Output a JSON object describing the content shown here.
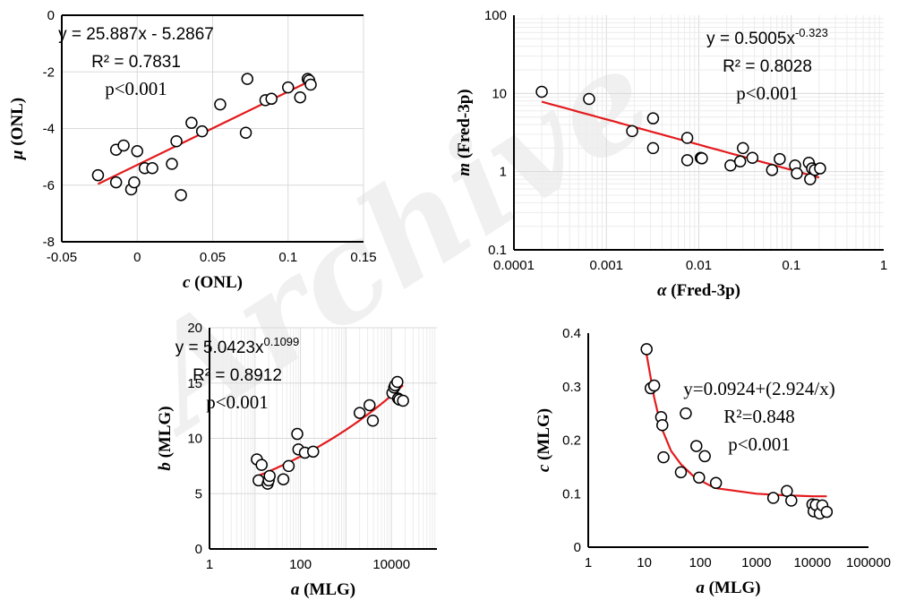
{
  "watermark": "Archive",
  "chart_data": [
    {
      "type": "scatter",
      "xscale": "linear",
      "yscale": "linear",
      "xlabel_var": "c",
      "xlabel_unit": " (ONL)",
      "ylabel_var": "μ",
      "ylabel_unit": " (ONL)",
      "xlim": [
        -0.05,
        0.15
      ],
      "ylim": [
        -8,
        0
      ],
      "xticks": [
        -0.05,
        0,
        0.05,
        0.1,
        0.15
      ],
      "xtick_labels": [
        "-0.05",
        "0",
        "0.05",
        "0.1",
        "0.15"
      ],
      "yticks": [
        -8,
        -6,
        -4,
        -2,
        0
      ],
      "ytick_labels": [
        "-8",
        "-6",
        "-4",
        "-2",
        "0"
      ],
      "grid": true,
      "equation_font": "sans",
      "equation_lines": [
        "y = 25.887x - 5.2867",
        "R² = 0.7831",
        "p<0.001"
      ],
      "fit": {
        "kind": "linear",
        "a": 25.887,
        "b": -5.2867,
        "xrange": [
          -0.026,
          0.116
        ]
      },
      "points": [
        [
          -0.026,
          -5.65
        ],
        [
          -0.014,
          -5.9
        ],
        [
          -0.014,
          -4.75
        ],
        [
          -0.009,
          -4.6
        ],
        [
          -0.004,
          -6.15
        ],
        [
          -0.002,
          -5.9
        ],
        [
          0,
          -4.8
        ],
        [
          0.005,
          -5.4
        ],
        [
          0.01,
          -5.4
        ],
        [
          0.023,
          -5.25
        ],
        [
          0.026,
          -4.45
        ],
        [
          0.029,
          -6.35
        ],
        [
          0.036,
          -3.8
        ],
        [
          0.043,
          -4.1
        ],
        [
          0.055,
          -3.15
        ],
        [
          0.072,
          -4.15
        ],
        [
          0.073,
          -2.25
        ],
        [
          0.085,
          -3.0
        ],
        [
          0.089,
          -2.95
        ],
        [
          0.1,
          -2.55
        ],
        [
          0.108,
          -2.9
        ],
        [
          0.113,
          -2.25
        ],
        [
          0.114,
          -2.3
        ],
        [
          0.115,
          -2.45
        ]
      ]
    },
    {
      "type": "scatter",
      "xscale": "log",
      "yscale": "log",
      "xlabel_var": "α",
      "xlabel_unit": " (Fred-3p)",
      "ylabel_var": "m",
      "ylabel_unit": " (Fred-3p)",
      "xlim": [
        0.0001,
        1
      ],
      "ylim": [
        0.1,
        100
      ],
      "xticks": [
        0.0001,
        0.001,
        0.01,
        0.1,
        1
      ],
      "xtick_labels": [
        "0.0001",
        "0.001",
        "0.01",
        "0.1",
        "1"
      ],
      "yticks": [
        0.1,
        1,
        10,
        100
      ],
      "ytick_labels": [
        "0.1",
        "1",
        "10",
        "100"
      ],
      "grid": true,
      "equation_font": "sans",
      "equation_lines": [
        "y = 0.5005x",
        "R² = 0.8028",
        "p<0.001"
      ],
      "equation_exponent": "-0.323",
      "fit": {
        "kind": "power",
        "a": 0.5005,
        "b": -0.323,
        "xrange": [
          0.0002,
          0.2
        ]
      },
      "points": [
        [
          0.0002,
          10.5
        ],
        [
          0.00065,
          8.5
        ],
        [
          0.0019,
          3.3
        ],
        [
          0.0032,
          4.8
        ],
        [
          0.0032,
          2.0
        ],
        [
          0.0075,
          2.7
        ],
        [
          0.0075,
          1.4
        ],
        [
          0.0105,
          1.5
        ],
        [
          0.0108,
          1.48
        ],
        [
          0.022,
          1.2
        ],
        [
          0.028,
          1.35
        ],
        [
          0.03,
          2.0
        ],
        [
          0.038,
          1.5
        ],
        [
          0.062,
          1.05
        ],
        [
          0.075,
          1.45
        ],
        [
          0.11,
          1.2
        ],
        [
          0.115,
          0.95
        ],
        [
          0.155,
          1.3
        ],
        [
          0.16,
          0.8
        ],
        [
          0.168,
          1.1
        ],
        [
          0.18,
          1.05
        ],
        [
          0.205,
          1.1
        ]
      ]
    },
    {
      "type": "scatter",
      "xscale": "log",
      "yscale": "linear",
      "xlabel_var": "a",
      "xlabel_unit": " (MLG)",
      "ylabel_var": "b",
      "ylabel_unit": " (MLG)",
      "xlim": [
        1,
        100000
      ],
      "ylim": [
        0,
        20
      ],
      "xticks": [
        1,
        100,
        10000
      ],
      "xtick_labels": [
        "1",
        "100",
        "10000"
      ],
      "yticks": [
        0,
        5,
        10,
        15,
        20
      ],
      "ytick_labels": [
        "0",
        "5",
        "10",
        "15",
        "20"
      ],
      "grid": true,
      "equation_font": "mixed",
      "equation_lines": [
        "y = 5.0423x",
        "R² = 0.8912",
        "p<0.001"
      ],
      "equation_exponent": "0.1099",
      "fit": {
        "kind": "power",
        "a": 5.0423,
        "b": 0.1099,
        "xrange": [
          11,
          18000
        ]
      },
      "points": [
        [
          11,
          8.1
        ],
        [
          12,
          6.2
        ],
        [
          14,
          7.6
        ],
        [
          19,
          5.9
        ],
        [
          20,
          6.2
        ],
        [
          21,
          6.6
        ],
        [
          42,
          6.3
        ],
        [
          55,
          7.5
        ],
        [
          85,
          10.4
        ],
        [
          90,
          9.0
        ],
        [
          125,
          8.7
        ],
        [
          190,
          8.8
        ],
        [
          2000,
          12.3
        ],
        [
          3300,
          13.0
        ],
        [
          3900,
          11.6
        ],
        [
          10500,
          14.1
        ],
        [
          11500,
          14.6
        ],
        [
          12000,
          14.8
        ],
        [
          13500,
          15.1
        ],
        [
          14000,
          13.6
        ],
        [
          15000,
          13.5
        ],
        [
          18000,
          13.4
        ]
      ]
    },
    {
      "type": "scatter",
      "xscale": "log",
      "yscale": "linear",
      "xlabel_var": "a",
      "xlabel_unit": " (MLG)",
      "ylabel_var": "c",
      "ylabel_unit": " (MLG)",
      "xlim": [
        1,
        100000
      ],
      "ylim": [
        0,
        0.4
      ],
      "xticks": [
        1,
        10,
        100,
        1000,
        10000,
        100000
      ],
      "xtick_labels": [
        "1",
        "10",
        "100",
        "1000",
        "10000",
        "100000"
      ],
      "yticks": [
        0,
        0.1,
        0.2,
        0.3,
        0.4
      ],
      "ytick_labels": [
        "0",
        "0.1",
        "0.2",
        "0.3",
        "0.4"
      ],
      "grid": false,
      "equation_font": "serif",
      "equation_lines": [
        "y=0.0924+(2.924/x)",
        "R²=0.848",
        "p<0.001"
      ],
      "fit": {
        "kind": "polyline",
        "xy": [
          [
            11,
            0.36
          ],
          [
            15,
            0.28
          ],
          [
            20,
            0.225
          ],
          [
            25,
            0.2
          ],
          [
            30,
            0.18
          ],
          [
            45,
            0.155
          ],
          [
            80,
            0.13
          ],
          [
            150,
            0.115
          ],
          [
            200,
            0.11
          ],
          [
            1000,
            0.1
          ],
          [
            3000,
            0.097
          ],
          [
            10000,
            0.095
          ],
          [
            18000,
            0.095
          ]
        ]
      },
      "points": [
        [
          11,
          0.37
        ],
        [
          13,
          0.297
        ],
        [
          15,
          0.302
        ],
        [
          20,
          0.243
        ],
        [
          21,
          0.228
        ],
        [
          22,
          0.168
        ],
        [
          45,
          0.14
        ],
        [
          55,
          0.25
        ],
        [
          85,
          0.189
        ],
        [
          95,
          0.13
        ],
        [
          120,
          0.17
        ],
        [
          190,
          0.12
        ],
        [
          2000,
          0.092
        ],
        [
          3500,
          0.105
        ],
        [
          4200,
          0.087
        ],
        [
          10000,
          0.08
        ],
        [
          10500,
          0.067
        ],
        [
          11500,
          0.079
        ],
        [
          13500,
          0.063
        ],
        [
          15000,
          0.078
        ],
        [
          18000,
          0.066
        ]
      ]
    }
  ]
}
